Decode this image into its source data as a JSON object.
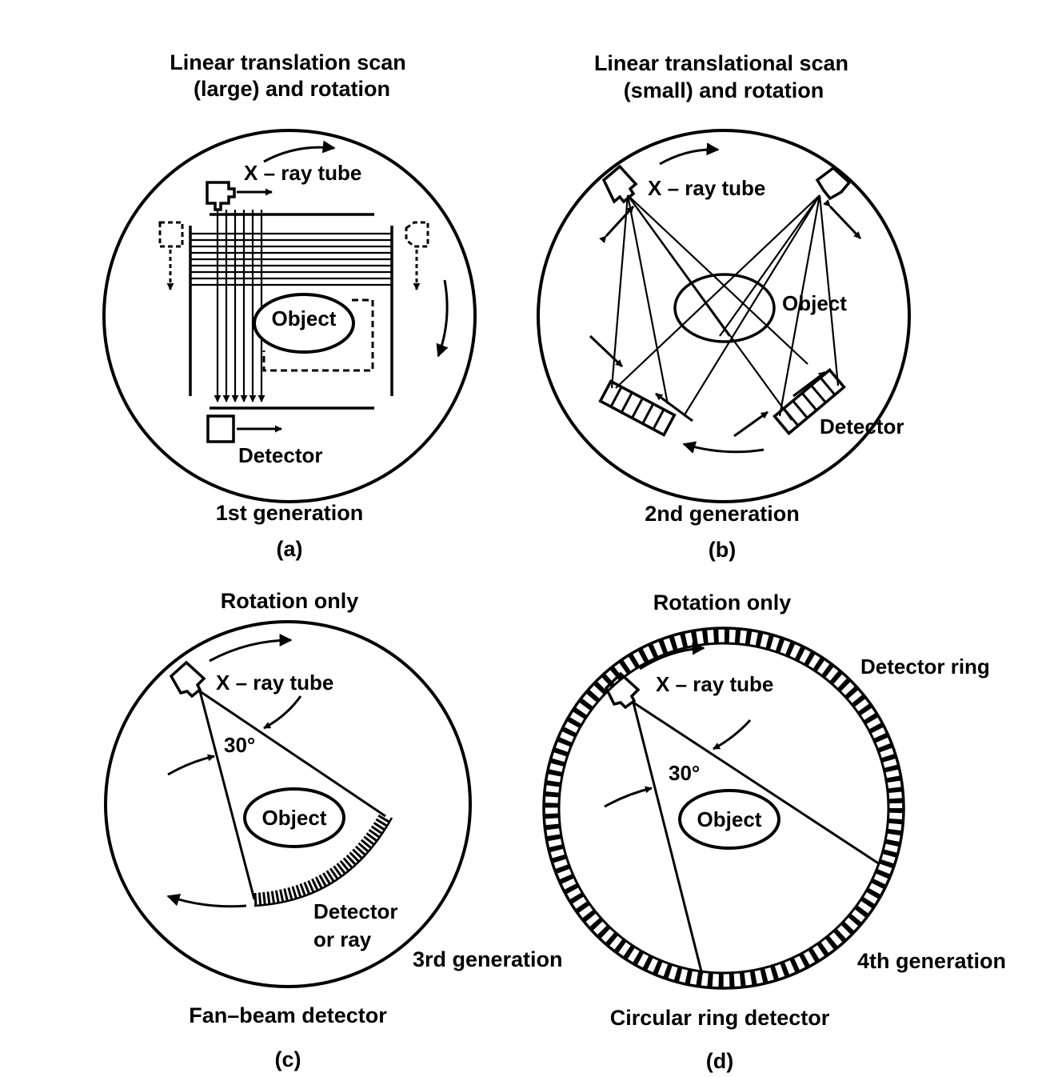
{
  "panels": {
    "a": {
      "title_line1": "Linear translation scan",
      "title_line2": "(large) and rotation",
      "tube_label": "X – ray tube",
      "object_label": "Object",
      "detector_label": "Detector",
      "generation": "1st generation",
      "letter": "(a)"
    },
    "b": {
      "title_line1": "Linear translational scan",
      "title_line2": "(small) and rotation",
      "tube_label": "X – ray tube",
      "object_label": "Object",
      "detector_label": "Detector",
      "generation": "2nd generation",
      "letter": "(b)"
    },
    "c": {
      "title": "Rotation only",
      "tube_label": "X – ray tube",
      "angle_label": "30°",
      "object_label": "Object",
      "detector_line1": "Detector",
      "detector_line2": "or ray",
      "generation": "3rd generation",
      "detector_type": "Fan–beam detector",
      "letter": "(c)"
    },
    "d": {
      "title": "Rotation only",
      "ring_label": "Detector ring",
      "tube_label": "X – ray tube",
      "angle_label": "30°",
      "object_label": "Object",
      "generation": "4th generation",
      "detector_type": "Circular ring detector",
      "letter": "(d)"
    }
  },
  "colors": {
    "ink": "#000000",
    "background": "#ffffff"
  }
}
